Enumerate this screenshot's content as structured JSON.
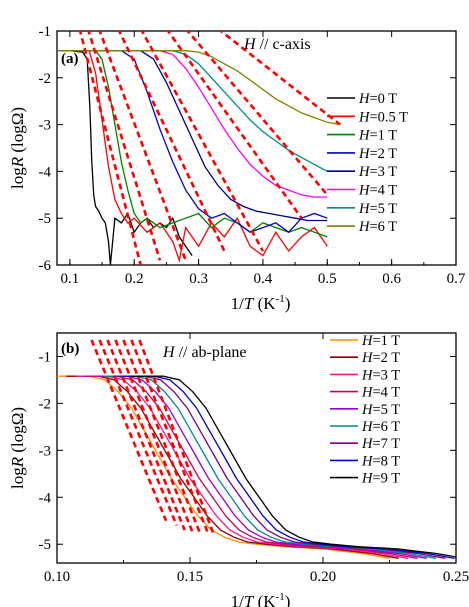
{
  "chart_data": [
    {
      "type": "line",
      "panel_label": "(a)",
      "annotation_prefix": "H",
      "annotation_suffix": " // c-axis",
      "xlabel_prefix": "1/",
      "xlabel_var": "T",
      "xlabel_unit": " (K",
      "xlabel_exp": "-1",
      "xlabel_close": ")",
      "ylabel_prefix": "log",
      "ylabel_var": "R",
      "ylabel_unit": " (logΩ)",
      "xlim": [
        0.08,
        0.7
      ],
      "ylim": [
        -6,
        -1
      ],
      "xticks": [
        "0.1",
        "0.2",
        "0.3",
        "0.4",
        "0.5",
        "0.6",
        "0.7"
      ],
      "yticks": [
        "-1",
        "-2",
        "-3",
        "-4",
        "-5",
        "-6"
      ],
      "legend_placement": "right",
      "fit_color": "#ff0000",
      "series": [
        {
          "name": "H=0 T",
          "field": "0",
          "color": "#000000",
          "x": [
            0.08,
            0.1,
            0.12,
            0.127,
            0.131,
            0.134,
            0.137,
            0.14,
            0.145,
            0.15,
            0.155,
            0.16,
            0.163,
            0.17,
            0.18,
            0.19,
            0.2,
            0.21,
            0.22,
            0.23,
            0.24,
            0.25,
            0.26,
            0.27,
            0.28,
            0.29
          ],
          "y": [
            -1.42,
            -1.42,
            -1.45,
            -1.6,
            -2.6,
            -3.8,
            -4.5,
            -4.75,
            -4.85,
            -5.0,
            -5.1,
            -5.5,
            -6.0,
            -5.0,
            -5.1,
            -4.9,
            -5.3,
            -5.1,
            -5.0,
            -5.2,
            -5.1,
            -5.2,
            -5.0,
            -5.4,
            -5.6,
            -5.8
          ]
        },
        {
          "name": "H=0.5 T",
          "field": "0.5",
          "color": "#ff0000",
          "x": [
            0.08,
            0.13,
            0.14,
            0.15,
            0.16,
            0.17,
            0.18,
            0.19,
            0.2,
            0.22,
            0.24,
            0.26,
            0.27,
            0.28,
            0.3,
            0.32,
            0.34,
            0.36,
            0.38,
            0.4,
            0.42,
            0.44,
            0.46,
            0.48,
            0.5
          ],
          "y": [
            -1.42,
            -1.42,
            -1.9,
            -2.9,
            -3.9,
            -4.6,
            -4.9,
            -5.1,
            -5.0,
            -5.3,
            -5.1,
            -5.5,
            -5.9,
            -5.2,
            -5.6,
            -5.1,
            -5.4,
            -5.0,
            -5.6,
            -5.8,
            -5.3,
            -5.7,
            -5.4,
            -5.2,
            -5.6
          ]
        },
        {
          "name": "H=1 T",
          "field": "1",
          "color": "#008000",
          "x": [
            0.08,
            0.14,
            0.15,
            0.16,
            0.17,
            0.18,
            0.19,
            0.2,
            0.21,
            0.22,
            0.24,
            0.26,
            0.28,
            0.3,
            0.32,
            0.34,
            0.36,
            0.38,
            0.4,
            0.42,
            0.44,
            0.46,
            0.48,
            0.5
          ],
          "y": [
            -1.42,
            -1.42,
            -1.6,
            -2.2,
            -3.0,
            -3.8,
            -4.4,
            -4.9,
            -5.1,
            -5.0,
            -5.2,
            -5.1,
            -5.0,
            -4.9,
            -5.2,
            -5.0,
            -5.1,
            -5.3,
            -5.1,
            -5.2,
            -5.3,
            -5.2,
            -5.3,
            -5.4
          ]
        },
        {
          "name": "H=2 T",
          "field": "2",
          "color": "#0000cc",
          "x": [
            0.08,
            0.18,
            0.2,
            0.22,
            0.24,
            0.26,
            0.28,
            0.3,
            0.32,
            0.34,
            0.36,
            0.38,
            0.4,
            0.42,
            0.44,
            0.46,
            0.48,
            0.5
          ],
          "y": [
            -1.42,
            -1.42,
            -1.6,
            -2.3,
            -3.1,
            -3.8,
            -4.4,
            -4.8,
            -5.0,
            -4.9,
            -5.1,
            -5.3,
            -5.2,
            -5.1,
            -5.3,
            -5.0,
            -4.9,
            -5.0
          ]
        },
        {
          "name": "H=3 T",
          "field": "3",
          "color": "#00008b",
          "x": [
            0.08,
            0.21,
            0.23,
            0.25,
            0.27,
            0.29,
            0.31,
            0.33,
            0.35,
            0.37,
            0.39,
            0.41,
            0.43,
            0.45,
            0.47,
            0.5
          ],
          "y": [
            -1.42,
            -1.42,
            -1.6,
            -2.1,
            -2.7,
            -3.3,
            -3.9,
            -4.3,
            -4.6,
            -4.75,
            -4.85,
            -4.9,
            -4.95,
            -5.0,
            -5.05,
            -5.05
          ]
        },
        {
          "name": "H=4 T",
          "field": "4",
          "color": "#ff00ff",
          "x": [
            0.08,
            0.24,
            0.26,
            0.28,
            0.3,
            0.32,
            0.34,
            0.36,
            0.38,
            0.4,
            0.42,
            0.44,
            0.46,
            0.48,
            0.5
          ],
          "y": [
            -1.42,
            -1.42,
            -1.5,
            -1.8,
            -2.2,
            -2.65,
            -3.1,
            -3.5,
            -3.85,
            -4.1,
            -4.3,
            -4.4,
            -4.5,
            -4.55,
            -4.55
          ]
        },
        {
          "name": "H=5 T",
          "field": "5",
          "color": "#008b8b",
          "x": [
            0.08,
            0.26,
            0.28,
            0.3,
            0.32,
            0.34,
            0.36,
            0.38,
            0.4,
            0.42,
            0.44,
            0.46,
            0.48,
            0.5
          ],
          "y": [
            -1.42,
            -1.42,
            -1.5,
            -1.7,
            -2.0,
            -2.3,
            -2.6,
            -2.9,
            -3.15,
            -3.35,
            -3.55,
            -3.7,
            -3.85,
            -4.0
          ]
        },
        {
          "name": "H=6 T",
          "field": "6",
          "color": "#808000",
          "x": [
            0.08,
            0.28,
            0.3,
            0.32,
            0.34,
            0.36,
            0.38,
            0.4,
            0.42,
            0.44,
            0.46,
            0.48,
            0.5,
            0.52
          ],
          "y": [
            -1.42,
            -1.42,
            -1.45,
            -1.55,
            -1.7,
            -1.85,
            -2.05,
            -2.25,
            -2.45,
            -2.6,
            -2.75,
            -2.85,
            -2.95,
            -3.0
          ]
        }
      ],
      "fits": [
        {
          "x": [
            0.115,
            0.21
          ],
          "y": [
            -0.95,
            -6.0
          ]
        },
        {
          "x": [
            0.128,
            0.24
          ],
          "y": [
            -0.95,
            -5.9
          ]
        },
        {
          "x": [
            0.145,
            0.28
          ],
          "y": [
            -0.95,
            -5.9
          ]
        },
        {
          "x": [
            0.175,
            0.34
          ],
          "y": [
            -0.95,
            -5.7
          ]
        },
        {
          "x": [
            0.21,
            0.4
          ],
          "y": [
            -0.95,
            -5.7
          ]
        },
        {
          "x": [
            0.25,
            0.46
          ],
          "y": [
            -0.95,
            -5.0
          ]
        },
        {
          "x": [
            0.28,
            0.5
          ],
          "y": [
            -0.95,
            -4.5
          ]
        },
        {
          "x": [
            0.33,
            0.52
          ],
          "y": [
            -0.95,
            -3.0
          ]
        }
      ]
    },
    {
      "type": "line",
      "panel_label": "(b)",
      "annotation_prefix": "H",
      "annotation_suffix": " // ab-plane",
      "xlabel_prefix": "1/",
      "xlabel_var": "T",
      "xlabel_unit": " (K",
      "xlabel_exp": "-1",
      "xlabel_close": ")",
      "ylabel_prefix": "log",
      "ylabel_var": "R",
      "ylabel_unit": " (logΩ)",
      "xlim": [
        0.1,
        0.25
      ],
      "ylim": [
        -5.4,
        -0.5
      ],
      "xticks": [
        "0.10",
        "0.15",
        "0.20",
        "0.25"
      ],
      "yticks": [
        "-1",
        "-2",
        "-3",
        "-4",
        "-5"
      ],
      "legend_placement": "top-right",
      "fit_color": "#ff0000",
      "series": [
        {
          "name": "H=1 T",
          "field": "1",
          "color": "#ff8c00",
          "shift": 0.0
        },
        {
          "name": "H=2 T",
          "field": "2",
          "color": "#8b0000",
          "shift": 0.0035
        },
        {
          "name": "H=3 T",
          "field": "3",
          "color": "#ff1493",
          "shift": 0.007
        },
        {
          "name": "H=4 T",
          "field": "4",
          "color": "#cc0066",
          "shift": 0.0105
        },
        {
          "name": "H=5 T",
          "field": "5",
          "color": "#9400d3",
          "shift": 0.014
        },
        {
          "name": "H=6 T",
          "field": "6",
          "color": "#008b8b",
          "shift": 0.0175
        },
        {
          "name": "H=7 T",
          "field": "7",
          "color": "#800080",
          "shift": 0.021
        },
        {
          "name": "H=8 T",
          "field": "8",
          "color": "#0000cd",
          "shift": 0.0245
        },
        {
          "name": "H=9 T",
          "field": "9",
          "color": "#000000",
          "shift": 0.028
        }
      ],
      "base_curve": {
        "x": [
          0.1,
          0.112,
          0.118,
          0.123,
          0.128,
          0.133,
          0.138,
          0.143,
          0.148,
          0.153,
          0.158,
          0.163,
          0.168,
          0.175,
          0.185,
          0.2,
          0.215,
          0.225
        ],
        "y": [
          -1.42,
          -1.42,
          -1.5,
          -1.75,
          -2.1,
          -2.6,
          -3.1,
          -3.6,
          -4.0,
          -4.4,
          -4.7,
          -4.85,
          -4.95,
          -5.0,
          -5.05,
          -5.1,
          -5.2,
          -5.3
        ]
      },
      "fits": [
        {
          "x": [
            0.113,
            0.141
          ],
          "y": [
            -0.65,
            -4.5
          ]
        },
        {
          "x": [
            0.116,
            0.145
          ],
          "y": [
            -0.65,
            -4.6
          ]
        },
        {
          "x": [
            0.119,
            0.148
          ],
          "y": [
            -0.65,
            -4.7
          ]
        },
        {
          "x": [
            0.122,
            0.151
          ],
          "y": [
            -0.65,
            -4.75
          ]
        },
        {
          "x": [
            0.125,
            0.154
          ],
          "y": [
            -0.65,
            -4.8
          ]
        },
        {
          "x": [
            0.128,
            0.157
          ],
          "y": [
            -0.65,
            -4.8
          ]
        },
        {
          "x": [
            0.131,
            0.159
          ],
          "y": [
            -0.65,
            -4.8
          ]
        }
      ]
    }
  ]
}
